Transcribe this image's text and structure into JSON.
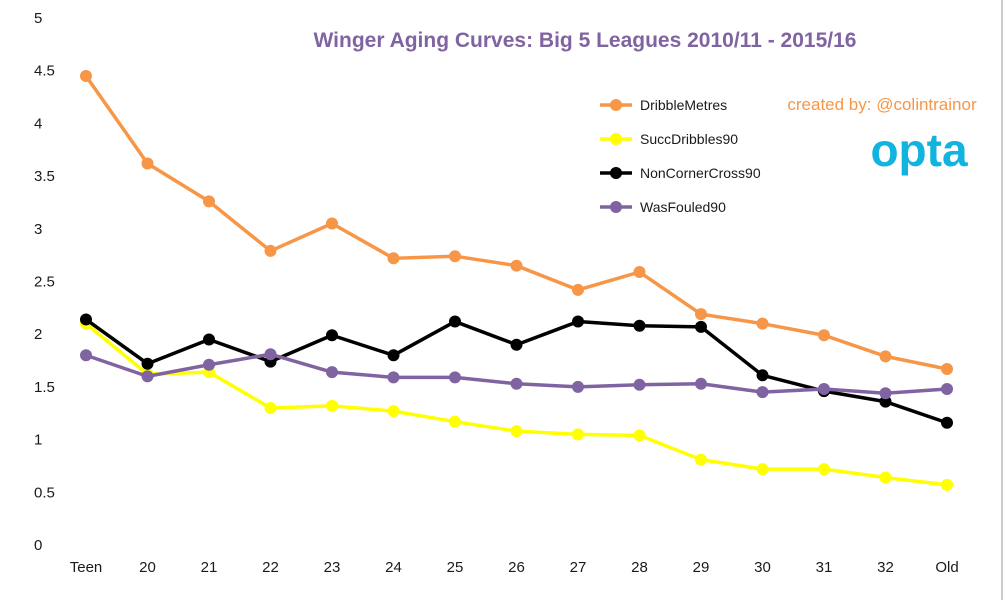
{
  "chart_data": {
    "type": "line",
    "title": "Winger Aging Curves: Big 5 Leagues 2010/11 - 2015/16",
    "xlabel": "",
    "ylabel": "",
    "categories": [
      "Teen",
      "20",
      "21",
      "22",
      "23",
      "24",
      "25",
      "26",
      "27",
      "28",
      "29",
      "30",
      "31",
      "32",
      "Old"
    ],
    "ylim": [
      0,
      5
    ],
    "yticks": [
      "0",
      "0.5",
      "1",
      "1.5",
      "2",
      "2.5",
      "3",
      "3.5",
      "4",
      "4.5",
      "5"
    ],
    "grid": false,
    "legend_position": "top-right",
    "series": [
      {
        "name": "DribbleMetres",
        "color": "#f79646",
        "values": [
          4.45,
          3.62,
          3.26,
          2.79,
          3.05,
          2.72,
          2.74,
          2.65,
          2.42,
          2.59,
          2.19,
          2.1,
          1.99,
          1.79,
          1.67
        ]
      },
      {
        "name": "SuccDribbles90",
        "color": "#ffff00",
        "values": [
          2.1,
          1.62,
          1.64,
          1.3,
          1.32,
          1.27,
          1.17,
          1.08,
          1.05,
          1.04,
          0.81,
          0.72,
          0.72,
          0.64,
          0.57
        ]
      },
      {
        "name": "NonCornerCross90",
        "color": "#000000",
        "values": [
          2.14,
          1.72,
          1.95,
          1.74,
          1.99,
          1.8,
          2.12,
          1.9,
          2.12,
          2.08,
          2.07,
          1.61,
          1.46,
          1.36,
          1.16
        ]
      },
      {
        "name": "WasFouled90",
        "color": "#8064a2",
        "values": [
          1.8,
          1.6,
          1.71,
          1.81,
          1.64,
          1.59,
          1.59,
          1.53,
          1.5,
          1.52,
          1.53,
          1.45,
          1.48,
          1.44,
          1.48
        ]
      }
    ],
    "annotations": {
      "credit": "created by: @colintrainor",
      "credit_color": "#f79646",
      "title_color": "#8064a2",
      "logo_text": "opta",
      "logo_color": "#13b3e0"
    }
  }
}
